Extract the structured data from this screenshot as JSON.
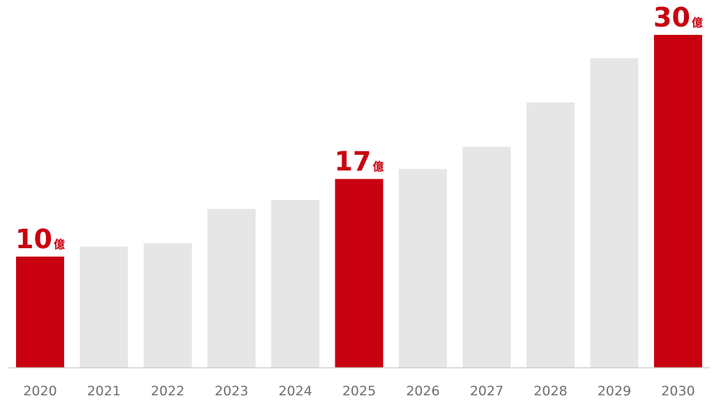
{
  "chart_data": {
    "type": "bar",
    "categories": [
      "2020",
      "2021",
      "2022",
      "2023",
      "2024",
      "2025",
      "2026",
      "2027",
      "2028",
      "2029",
      "2030"
    ],
    "values": [
      10,
      10.9,
      11.2,
      14.3,
      15.1,
      17,
      17.9,
      19.9,
      23.9,
      27.9,
      30
    ],
    "highlighted": [
      "2020",
      "2025",
      "2030"
    ],
    "data_labels": [
      {
        "category": "2020",
        "number": "10",
        "unit": "億"
      },
      {
        "category": "2025",
        "number": "17",
        "unit": "億"
      },
      {
        "category": "2030",
        "number": "30",
        "unit": "億"
      }
    ],
    "title": "",
    "xlabel": "",
    "ylabel": "",
    "ylim": [
      0,
      30.5
    ],
    "grid": false,
    "legend": "none",
    "colors": {
      "highlight": "#c8000f",
      "bar": "#e6e6e6",
      "axis": "#d0d0d0",
      "tick_text": "#6e6e6e",
      "label_text": "#c8000f"
    }
  }
}
